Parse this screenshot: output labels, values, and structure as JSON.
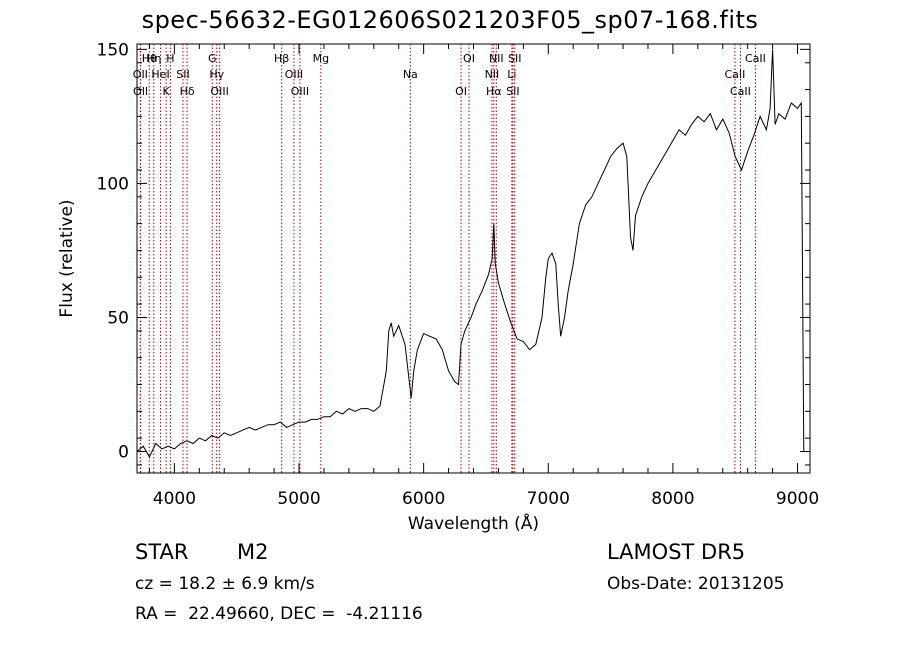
{
  "header": {
    "title": "spec-56632-EG012606S021203F05_sp07-168.fits"
  },
  "info": {
    "object_class": "STAR",
    "subclass": "M2",
    "survey": "LAMOST DR5",
    "redshift": "cz = 18.2 ± 6.9 km/s",
    "obs_date": "Obs-Date: 20131205",
    "coordinates": "RA =  22.49660, DEC =  -4.21116"
  },
  "chart_data": {
    "type": "line",
    "title": "spec-56632-EG012606S021203F05_sp07-168.fits",
    "xlabel": "Wavelength (Å)",
    "ylabel": "Flux (relative)",
    "xlim": [
      3700,
      9100
    ],
    "ylim": [
      -8,
      152
    ],
    "x_ticks": [
      4000,
      5000,
      6000,
      7000,
      8000,
      9000
    ],
    "y_ticks": [
      0,
      50,
      100,
      150
    ],
    "grid": false,
    "legend": "none",
    "colors": {
      "spectrum": "#000000",
      "line_markers": "#b00000"
    },
    "series": [
      {
        "x": [
          3700,
          3750,
          3800,
          3850,
          3900,
          3950,
          4000,
          4050,
          4100,
          4150,
          4200,
          4250,
          4300,
          4350,
          4400,
          4450,
          4500,
          4550,
          4600,
          4650,
          4700,
          4750,
          4800,
          4850,
          4900,
          4950,
          5000,
          5050,
          5100,
          5150,
          5200,
          5250,
          5300,
          5350,
          5400,
          5450,
          5500,
          5550,
          5600,
          5650,
          5700,
          5720,
          5740,
          5760,
          5800,
          5850,
          5880,
          5900,
          5920,
          5950,
          6000,
          6050,
          6100,
          6150,
          6200,
          6250,
          6280,
          6300,
          6330,
          6380,
          6420,
          6470,
          6520,
          6550,
          6563,
          6575,
          6600,
          6650,
          6700,
          6750,
          6800,
          6850,
          6900,
          6950,
          6980,
          7000,
          7030,
          7060,
          7080,
          7100,
          7130,
          7160,
          7200,
          7250,
          7300,
          7350,
          7400,
          7450,
          7500,
          7550,
          7600,
          7630,
          7660,
          7680,
          7700,
          7750,
          7800,
          7850,
          7900,
          7950,
          8000,
          8050,
          8100,
          8150,
          8200,
          8250,
          8300,
          8350,
          8400,
          8450,
          8500,
          8550,
          8600,
          8650,
          8700,
          8750,
          8780,
          8800,
          8820,
          8850,
          8900,
          8950,
          9000,
          9030,
          9050
        ],
        "y": [
          0,
          2,
          -2,
          3,
          1,
          2,
          1,
          3,
          4,
          3,
          5,
          4,
          6,
          5,
          7,
          6,
          7,
          8,
          9,
          8,
          9,
          10,
          10,
          11,
          9,
          10,
          11,
          11,
          12,
          12,
          13,
          13,
          15,
          14,
          16,
          15,
          16,
          16,
          15,
          17,
          30,
          45,
          48,
          43,
          47,
          40,
          28,
          20,
          30,
          38,
          44,
          43,
          42,
          38,
          30,
          26,
          25,
          40,
          45,
          50,
          55,
          60,
          66,
          72,
          85,
          70,
          63,
          55,
          48,
          42,
          41,
          38,
          40,
          50,
          65,
          72,
          74,
          70,
          55,
          43,
          50,
          60,
          70,
          85,
          92,
          95,
          100,
          105,
          110,
          113,
          115,
          110,
          80,
          75,
          88,
          95,
          100,
          104,
          108,
          112,
          116,
          120,
          118,
          122,
          125,
          123,
          126,
          120,
          124,
          119,
          110,
          105,
          112,
          118,
          125,
          120,
          128,
          150,
          122,
          126,
          124,
          130,
          128,
          130,
          0
        ]
      }
    ],
    "line_markers": [
      {
        "label": "Hθ",
        "wavelength": 3798
      },
      {
        "label": "OII",
        "wavelength": 3727
      },
      {
        "label": "OII",
        "wavelength": 3729
      },
      {
        "label": "Hη",
        "wavelength": 3835
      },
      {
        "label": "HeI",
        "wavelength": 3889
      },
      {
        "label": "K",
        "wavelength": 3934
      },
      {
        "label": "H",
        "wavelength": 3968
      },
      {
        "label": "SII",
        "wavelength": 4069
      },
      {
        "label": "Hδ",
        "wavelength": 4102
      },
      {
        "label": "G",
        "wavelength": 4304
      },
      {
        "label": "Hγ",
        "wavelength": 4340
      },
      {
        "label": "OIII",
        "wavelength": 4363
      },
      {
        "label": "Hβ",
        "wavelength": 4861
      },
      {
        "label": "OIII",
        "wavelength": 4959
      },
      {
        "label": "OIII",
        "wavelength": 5007
      },
      {
        "label": "Mg",
        "wavelength": 5175
      },
      {
        "label": "Na",
        "wavelength": 5893
      },
      {
        "label": "OI",
        "wavelength": 6300
      },
      {
        "label": "OI",
        "wavelength": 6364
      },
      {
        "label": "NII",
        "wavelength": 6548
      },
      {
        "label": "Hα",
        "wavelength": 6563
      },
      {
        "label": "NII",
        "wavelength": 6583
      },
      {
        "label": "Li",
        "wavelength": 6708
      },
      {
        "label": "SII",
        "wavelength": 6716
      },
      {
        "label": "SII",
        "wavelength": 6731
      },
      {
        "label": "CaII",
        "wavelength": 8498
      },
      {
        "label": "CaII",
        "wavelength": 8542
      },
      {
        "label": "CaII",
        "wavelength": 8662
      }
    ]
  }
}
